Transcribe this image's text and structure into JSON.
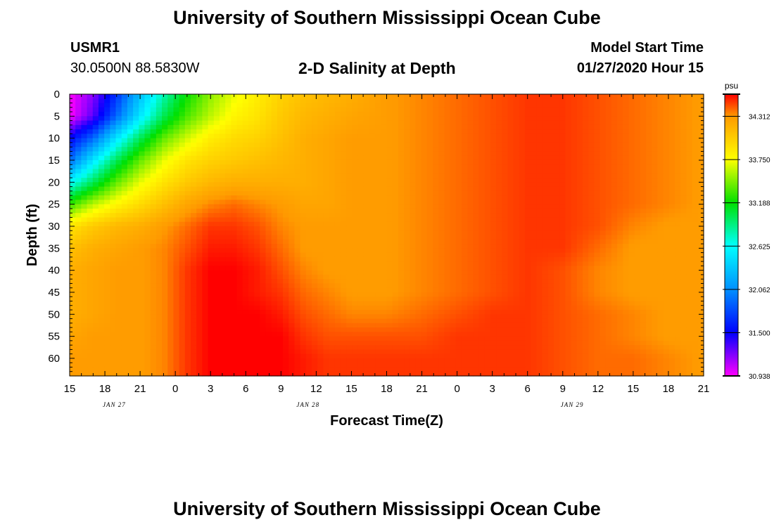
{
  "header": {
    "title": "University of Southern Mississippi Ocean Cube",
    "station_id": "USMR1",
    "coordinates": "30.0500N 88.5830W",
    "plot_title": "2-D Salinity at Depth",
    "model_start_label": "Model Start Time",
    "model_start_time": "01/27/2020 Hour 15"
  },
  "footer": {
    "title": "University of Southern Mississippi Ocean Cube"
  },
  "chart_data": {
    "type": "heatmap",
    "title": "2-D Salinity at Depth",
    "xlabel": "Forecast Time(Z)",
    "ylabel": "Depth (ft)",
    "x_ticks": [
      "15",
      "18",
      "21",
      "0",
      "3",
      "6",
      "9",
      "12",
      "15",
      "18",
      "21",
      "0",
      "3",
      "6",
      "9",
      "12",
      "15",
      "18",
      "21"
    ],
    "x_range_hours": [
      0,
      54
    ],
    "date_labels": [
      {
        "text": "JAN 27",
        "hour": 3.8
      },
      {
        "text": "JAN 28",
        "hour": 20.3
      },
      {
        "text": "JAN 29",
        "hour": 42.8
      }
    ],
    "y_ticks": [
      0,
      5,
      10,
      15,
      20,
      25,
      30,
      35,
      40,
      45,
      50,
      55,
      60
    ],
    "ylim": [
      0,
      64
    ],
    "colorbar": {
      "unit": "psu",
      "min": 30.938,
      "max": 34.6,
      "tick_values": [
        "34.312",
        "33.750",
        "33.188",
        "32.625",
        "32.062",
        "31.500",
        "30.938"
      ]
    },
    "color_stops": [
      {
        "value": 30.938,
        "color": "#ff00ff"
      },
      {
        "value": 31.5,
        "color": "#0000ff"
      },
      {
        "value": 32.062,
        "color": "#0090ff"
      },
      {
        "value": 32.625,
        "color": "#00ffff"
      },
      {
        "value": 33.188,
        "color": "#00e000"
      },
      {
        "value": 33.75,
        "color": "#ffff00"
      },
      {
        "value": 34.312,
        "color": "#ff9a00"
      },
      {
        "value": 34.6,
        "color": "#ff0000"
      }
    ],
    "salinity_samples": {
      "hours": [
        0,
        2,
        4,
        6,
        8,
        10,
        12,
        14,
        16,
        18,
        20,
        22,
        24,
        27,
        30,
        33,
        36,
        39,
        42,
        45,
        48,
        51,
        54
      ],
      "depths": [
        0,
        5,
        10,
        15,
        20,
        25,
        30,
        35,
        40,
        45,
        50,
        55,
        60,
        64
      ],
      "values": [
        [
          30.94,
          31.2,
          31.7,
          32.3,
          32.8,
          33.2,
          33.5,
          33.7,
          33.85,
          34.0,
          34.1,
          34.15,
          34.2,
          34.3,
          34.35,
          34.4,
          34.45,
          34.5,
          34.5,
          34.45,
          34.4,
          34.35,
          34.3
        ],
        [
          30.94,
          31.3,
          31.9,
          32.5,
          33.0,
          33.35,
          33.6,
          33.8,
          33.9,
          34.05,
          34.15,
          34.2,
          34.25,
          34.3,
          34.35,
          34.4,
          34.45,
          34.5,
          34.5,
          34.45,
          34.4,
          34.35,
          34.3
        ],
        [
          31.5,
          31.9,
          32.5,
          33.0,
          33.4,
          33.65,
          33.85,
          33.95,
          34.0,
          34.1,
          34.2,
          34.25,
          34.3,
          34.3,
          34.35,
          34.4,
          34.45,
          34.5,
          34.5,
          34.45,
          34.4,
          34.35,
          34.3
        ],
        [
          31.9,
          32.5,
          33.0,
          33.4,
          33.7,
          33.9,
          34.0,
          34.05,
          34.1,
          34.15,
          34.2,
          34.25,
          34.3,
          34.3,
          34.35,
          34.4,
          34.45,
          34.5,
          34.5,
          34.45,
          34.4,
          34.35,
          34.3
        ],
        [
          32.6,
          33.0,
          33.4,
          33.7,
          33.9,
          34.05,
          34.15,
          34.2,
          34.2,
          34.2,
          34.2,
          34.25,
          34.3,
          34.3,
          34.35,
          34.4,
          34.45,
          34.5,
          34.5,
          34.45,
          34.4,
          34.35,
          34.3
        ],
        [
          33.3,
          33.6,
          33.8,
          33.95,
          34.1,
          34.25,
          34.35,
          34.4,
          34.35,
          34.3,
          34.25,
          34.25,
          34.3,
          34.3,
          34.35,
          34.4,
          34.45,
          34.5,
          34.5,
          34.45,
          34.4,
          34.35,
          34.3
        ],
        [
          33.9,
          34.05,
          34.15,
          34.2,
          34.3,
          34.4,
          34.5,
          34.5,
          34.45,
          34.35,
          34.3,
          34.3,
          34.3,
          34.3,
          34.35,
          34.4,
          34.45,
          34.5,
          34.5,
          34.45,
          34.35,
          34.3,
          34.3
        ],
        [
          34.1,
          34.2,
          34.25,
          34.3,
          34.35,
          34.45,
          34.55,
          34.55,
          34.5,
          34.4,
          34.3,
          34.3,
          34.3,
          34.3,
          34.35,
          34.4,
          34.45,
          34.5,
          34.5,
          34.4,
          34.3,
          34.3,
          34.3
        ],
        [
          34.2,
          34.25,
          34.3,
          34.3,
          34.35,
          34.5,
          34.6,
          34.6,
          34.55,
          34.45,
          34.35,
          34.3,
          34.3,
          34.3,
          34.35,
          34.4,
          34.45,
          34.5,
          34.45,
          34.35,
          34.3,
          34.3,
          34.3
        ],
        [
          34.2,
          34.25,
          34.3,
          34.3,
          34.35,
          34.5,
          34.6,
          34.6,
          34.55,
          34.5,
          34.4,
          34.35,
          34.3,
          34.3,
          34.35,
          34.4,
          34.45,
          34.5,
          34.45,
          34.35,
          34.3,
          34.3,
          34.3
        ],
        [
          34.2,
          34.25,
          34.3,
          34.3,
          34.35,
          34.5,
          34.6,
          34.6,
          34.6,
          34.55,
          34.45,
          34.4,
          34.35,
          34.35,
          34.4,
          34.45,
          34.5,
          34.5,
          34.45,
          34.4,
          34.35,
          34.3,
          34.3
        ],
        [
          34.25,
          34.3,
          34.3,
          34.3,
          34.35,
          34.5,
          34.6,
          34.6,
          34.6,
          34.6,
          34.5,
          34.45,
          34.45,
          34.45,
          34.45,
          34.5,
          34.5,
          34.5,
          34.45,
          34.4,
          34.35,
          34.3,
          34.3
        ],
        [
          34.3,
          34.3,
          34.3,
          34.3,
          34.35,
          34.5,
          34.6,
          34.6,
          34.6,
          34.6,
          34.55,
          34.5,
          34.5,
          34.5,
          34.5,
          34.5,
          34.5,
          34.5,
          34.45,
          34.4,
          34.4,
          34.35,
          34.3
        ],
        [
          34.3,
          34.3,
          34.3,
          34.3,
          34.35,
          34.5,
          34.6,
          34.6,
          34.6,
          34.6,
          34.55,
          34.5,
          34.5,
          34.5,
          34.5,
          34.5,
          34.5,
          34.5,
          34.45,
          34.4,
          34.4,
          34.35,
          34.3
        ]
      ]
    }
  }
}
